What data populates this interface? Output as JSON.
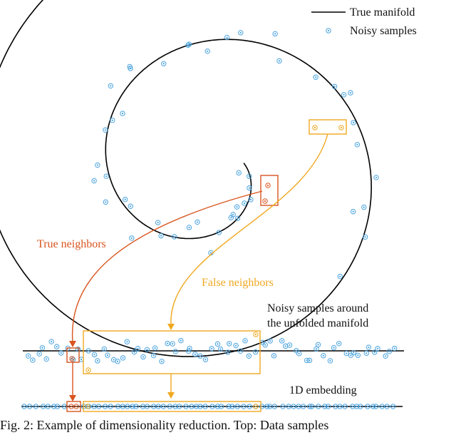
{
  "legend": {
    "line_label": "True manifold",
    "marker_label": "Noisy samples"
  },
  "annotations": {
    "true_neighbors": "True neighbors",
    "false_neighbors": "False neighbors",
    "unfolded_line1": "Noisy samples around",
    "unfolded_line2": "the unfolded manifold",
    "embedding": "1D embedding"
  },
  "caption": "Fig. 2: Example of dimensionality reduction. Top: Data samples",
  "colors": {
    "manifold": "#000000",
    "sample": "#4aa3df",
    "true_neighbors": "#d9541e",
    "false_neighbors": "#f0a820"
  }
}
